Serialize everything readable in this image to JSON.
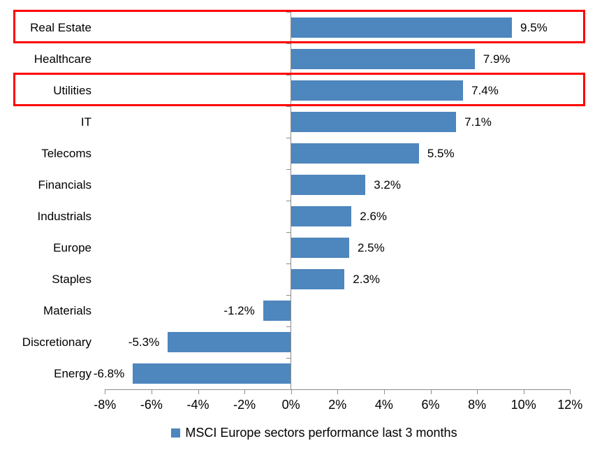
{
  "chart_data": {
    "type": "bar",
    "orientation": "horizontal",
    "title": "",
    "categories": [
      "Real Estate",
      "Healthcare",
      "Utilities",
      "IT",
      "Telecoms",
      "Financials",
      "Industrials",
      "Europe",
      "Staples",
      "Materials",
      "Discretionary",
      "Energy"
    ],
    "values": [
      9.5,
      7.9,
      7.4,
      7.1,
      5.5,
      3.2,
      2.6,
      2.5,
      2.3,
      -1.2,
      -5.3,
      -6.8
    ],
    "value_labels": [
      "9.5%",
      "7.9%",
      "7.4%",
      "7.1%",
      "5.5%",
      "3.2%",
      "2.6%",
      "2.5%",
      "2.3%",
      "-1.2%",
      "-5.3%",
      "-6.8%"
    ],
    "xlim": [
      -8,
      12
    ],
    "x_tick_values": [
      -8,
      -6,
      -4,
      -2,
      0,
      2,
      4,
      6,
      8,
      10,
      12
    ],
    "x_tick_labels": [
      "-8%",
      "-6%",
      "-4%",
      "-2%",
      "0%",
      "2%",
      "4%",
      "6%",
      "8%",
      "10%",
      "12%"
    ],
    "grid": false,
    "data_labels": "outside-end",
    "legend_position": "bottom",
    "legend_label": "MSCI Europe sectors performance last 3 months",
    "bar_color": "#4E86BE",
    "axis_color": "#8C8C8C",
    "text_color": "#000000",
    "highlight_box_color": "#FF0000",
    "highlighted_categories": [
      "Real Estate",
      "Utilities"
    ]
  }
}
